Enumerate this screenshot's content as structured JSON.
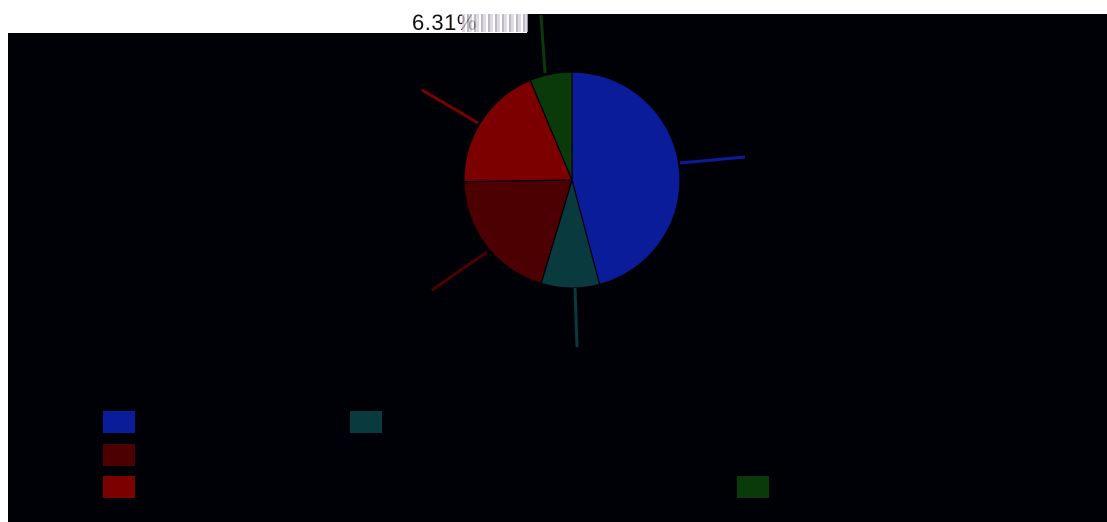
{
  "chart_data": {
    "type": "pie",
    "slices": [
      {
        "name": "",
        "value": 45.89,
        "label": "",
        "color": "#0a1c9a"
      },
      {
        "name": "",
        "value": 8.72,
        "label": "",
        "color": "#083a3e"
      },
      {
        "name": "",
        "value": 20.15,
        "label": "",
        "color": "#4c0002"
      },
      {
        "name": "",
        "value": 18.93,
        "label": "",
        "color": "#7c0000"
      },
      {
        "name": "",
        "value": 6.31,
        "label": "6.31%",
        "color": "#0a3a0a"
      }
    ],
    "legend": {
      "position": "bottom",
      "rows": 3
    }
  }
}
